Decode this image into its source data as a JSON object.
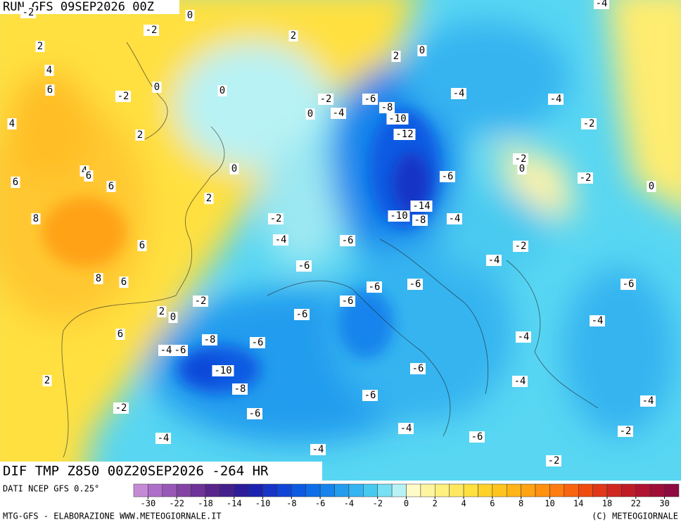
{
  "map": {
    "header": "RUN GFS 09SEP2026 00Z",
    "subheader": "DIF TMP Z850 00Z20SEP2026 -264 HR",
    "data_source": "DATI NCEP GFS 0.25°",
    "credit_left": "MTG-GFS - ELABORAZIONE WWW.METEOGIORNALE.IT",
    "credit_right": "(C) METEOGIORNALE",
    "contour_labels": [
      -2,
      0,
      -2,
      2,
      2,
      2,
      0,
      4,
      6,
      0,
      0,
      -2,
      -2,
      -6,
      -4,
      -4,
      -8,
      0,
      -4,
      -10,
      4,
      -2,
      2,
      -12,
      -2,
      0,
      0,
      4,
      6,
      -6,
      -2,
      6,
      6,
      0,
      2,
      -14,
      -10,
      -8,
      -4,
      -2,
      8,
      -4,
      -6,
      6,
      -2,
      -6,
      -4,
      8,
      6,
      -6,
      -6,
      -6,
      -2,
      -6,
      2,
      0,
      -6,
      -4,
      6,
      -8,
      -6,
      -4,
      -4,
      -6,
      -10,
      -6,
      2,
      -8,
      -4,
      -6,
      -4,
      -2,
      -6,
      -4,
      -2,
      -4,
      -6,
      -4,
      -2,
      -4
    ],
    "colorbar": {
      "colors": [
        "#c58ad6",
        "#ae6fc8",
        "#9858b6",
        "#8344a6",
        "#6e3398",
        "#58258a",
        "#441f8c",
        "#2c1c9a",
        "#1c22b0",
        "#1634c6",
        "#1046d8",
        "#0c5ae2",
        "#0e6ee8",
        "#1684ec",
        "#249cee",
        "#34b4f0",
        "#48caf0",
        "#78e0f2",
        "#b8f2f4",
        "#fffbc8",
        "#fff5a0",
        "#fff080",
        "#ffe860",
        "#ffe040",
        "#ffd22a",
        "#ffc420",
        "#ffb418",
        "#ffa214",
        "#ff9010",
        "#ff7c10",
        "#f86410",
        "#ee4c10",
        "#e03818",
        "#d02820",
        "#c01c28",
        "#b01430",
        "#a00e38",
        "#900a40"
      ],
      "ticks": [
        -30,
        -22,
        -18,
        -14,
        -10,
        -8,
        -6,
        -4,
        -2,
        0,
        2,
        4,
        6,
        8,
        10,
        14,
        18,
        22,
        30
      ]
    }
  }
}
